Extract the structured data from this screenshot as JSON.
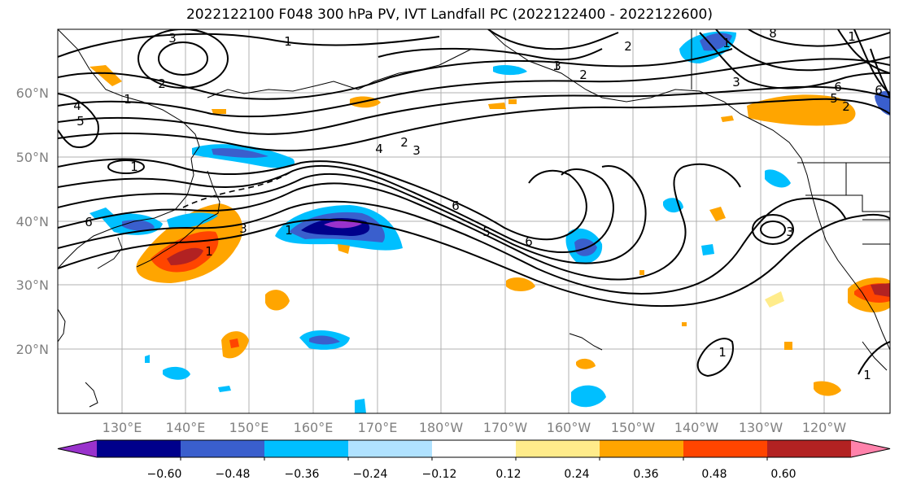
{
  "title": "2022122100 F048 300 hPa PV, IVT Landfall PC (2022122400 - 2022122600)",
  "lat_labels": [
    "60°N",
    "50°N",
    "40°N",
    "30°N",
    "20°N"
  ],
  "lon_labels": [
    "130°E",
    "140°E",
    "150°E",
    "160°E",
    "170°E",
    "180°W",
    "170°W",
    "160°W",
    "150°W",
    "140°W",
    "130°W",
    "120°W"
  ],
  "colorbar": {
    "ticks": [
      "−0.60",
      "−0.48",
      "−0.36",
      "−0.24",
      "−0.12",
      "0.12",
      "0.24",
      "0.36",
      "0.48",
      "0.60"
    ],
    "colors": [
      "#9932cc",
      "#00008b",
      "#3a5fcd",
      "#00bfff",
      "#b0e2ff",
      "#ffffff",
      "#ffec8b",
      "#ffa500",
      "#ff4500",
      "#b22222",
      "#ff82ab"
    ]
  },
  "contour_labels": [
    "3",
    "1",
    "2",
    "1",
    "4",
    "5",
    "2",
    "2",
    "1",
    "2",
    "3",
    "8",
    "1",
    "1",
    "1",
    "3",
    "6",
    "5",
    "4",
    "2",
    "3",
    "1",
    "6",
    "6",
    "5",
    "6",
    "1",
    "3",
    "3",
    "6",
    "1",
    "1"
  ]
}
